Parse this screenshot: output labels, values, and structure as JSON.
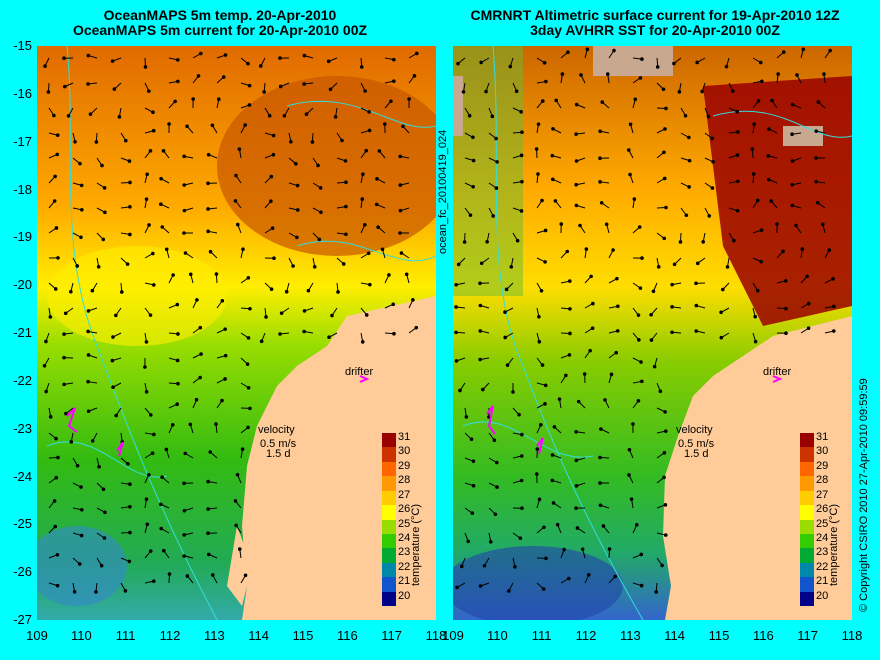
{
  "panels": [
    {
      "id": "left",
      "title_line1": "OceanMAPS 5m temp. 20-Apr-2010",
      "title_line2": "OceanMAPS 5m current for 20-Apr-2010 00Z",
      "drifter_label": "drifter",
      "velocity_label": "velocity",
      "velocity_scale": "0.5 m/s",
      "velocity_time": "1.5 d",
      "colorbar_label": "temperature (°C)"
    },
    {
      "id": "right",
      "title_line1": "CMRNRT Altimetric surface current for 19-Apr-2010 12Z",
      "title_line2": "3day AVHRR SST for 20-Apr-2010 00Z",
      "drifter_label": "drifter",
      "velocity_label": "velocity",
      "velocity_scale": "0.5 m/s",
      "velocity_time": "1.5 d",
      "colorbar_label": "temperature (°C)"
    }
  ],
  "y_axis_labels": [
    "-15",
    "-16",
    "-17",
    "-18",
    "-19",
    "-20",
    "-21",
    "-22",
    "-23",
    "-24",
    "-25",
    "-26",
    "-27"
  ],
  "x_axis_labels": [
    "109",
    "110",
    "111",
    "112",
    "113",
    "114",
    "115",
    "116",
    "117",
    "118"
  ],
  "colorbar_ticks": [
    "31",
    "30",
    "29",
    "28",
    "27",
    "26",
    "25",
    "24",
    "23",
    "22",
    "21",
    "20"
  ],
  "filename": "ocean_fc_20100419_024",
  "copyright": "© Copyright CSIRO 2010   27-Apr-2010 09:59:59",
  "colors": {
    "background": "#00ffff",
    "land": "#ffcc99",
    "drifter": "#ff00ff",
    "missing": "#c8a88e",
    "scale": [
      "#ffcc00",
      "#ff9900",
      "#ff6600",
      "#cc3300",
      "#990000"
    ]
  }
}
